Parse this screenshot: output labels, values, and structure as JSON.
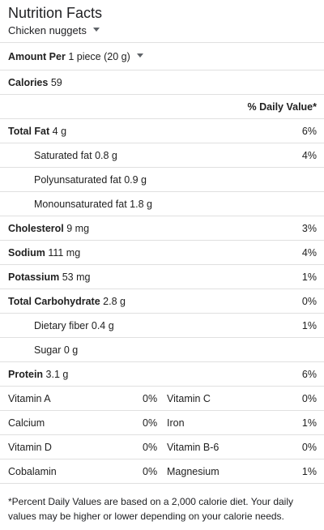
{
  "header": {
    "title": "Nutrition Facts",
    "food": "Chicken nuggets"
  },
  "serving": {
    "label": "Amount Per",
    "value": "1 piece (20 g)"
  },
  "calories": {
    "label": "Calories",
    "value": "59"
  },
  "daily_value_header": "% Daily Value*",
  "nutrients": [
    {
      "name": "Total Fat",
      "amount": "4 g",
      "pct": "6%"
    },
    {
      "name": "Saturated fat",
      "amount": "0.8 g",
      "pct": "4%"
    },
    {
      "name": "Polyunsaturated fat",
      "amount": "0.9 g",
      "pct": ""
    },
    {
      "name": "Monounsaturated fat",
      "amount": "1.8 g",
      "pct": ""
    },
    {
      "name": "Cholesterol",
      "amount": "9 mg",
      "pct": "3%"
    },
    {
      "name": "Sodium",
      "amount": "111 mg",
      "pct": "4%"
    },
    {
      "name": "Potassium",
      "amount": "53 mg",
      "pct": "1%"
    },
    {
      "name": "Total Carbohydrate",
      "amount": "2.8 g",
      "pct": "0%"
    },
    {
      "name": "Dietary fiber",
      "amount": "0.4 g",
      "pct": "1%"
    },
    {
      "name": "Sugar",
      "amount": "0 g",
      "pct": ""
    },
    {
      "name": "Protein",
      "amount": "3.1 g",
      "pct": "6%"
    }
  ],
  "vitamins": [
    {
      "left_name": "Vitamin A",
      "left_pct": "0%",
      "right_name": "Vitamin C",
      "right_pct": "0%"
    },
    {
      "left_name": "Calcium",
      "left_pct": "0%",
      "right_name": "Iron",
      "right_pct": "1%"
    },
    {
      "left_name": "Vitamin D",
      "left_pct": "0%",
      "right_name": "Vitamin B-6",
      "right_pct": "0%"
    },
    {
      "left_name": "Cobalamin",
      "left_pct": "0%",
      "right_name": "Magnesium",
      "right_pct": "1%"
    }
  ],
  "footnote": "*Percent Daily Values are based on a 2,000 calorie diet. Your daily values may be higher or lower depending on your calorie needs."
}
